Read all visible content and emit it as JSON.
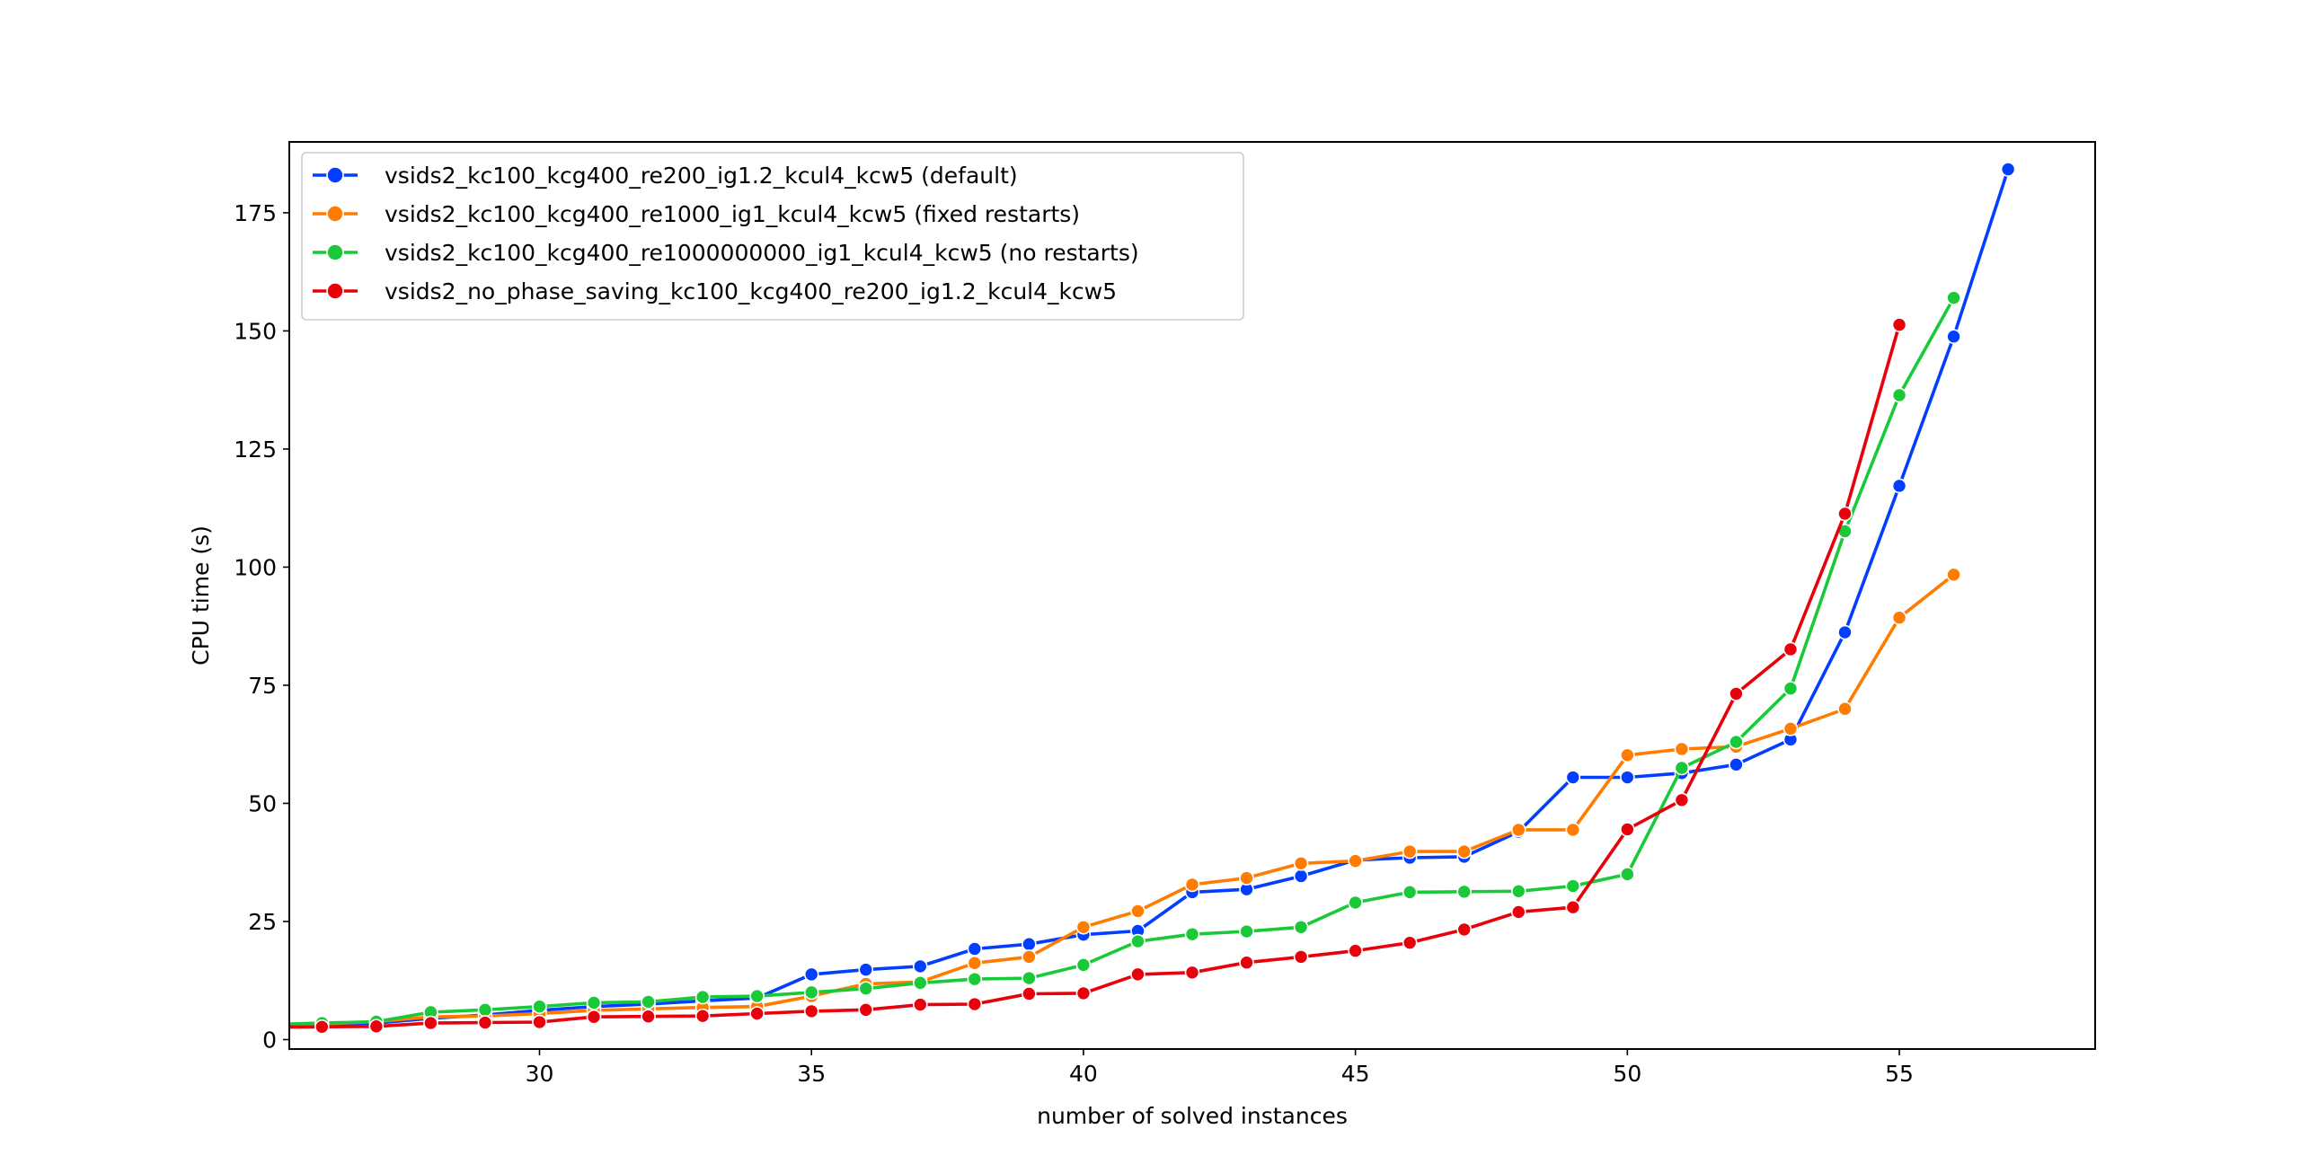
{
  "chart_data": {
    "type": "line",
    "title": "",
    "xlabel": "number of solved instances",
    "ylabel": "CPU time (s)",
    "xlim": [
      25.4,
      58.6
    ],
    "ylim": [
      -2,
      190
    ],
    "xticks": [
      30,
      35,
      40,
      45,
      50,
      55
    ],
    "yticks": [
      0,
      25,
      50,
      75,
      100,
      125,
      150,
      175
    ],
    "grid": false,
    "legend_position": "top-left",
    "series": [
      {
        "name": "vsids2_kc100_kcg400_re200_ig1.2_kcul4_kcw5 (default)",
        "color": "#023eff",
        "x": [
          25,
          26,
          27,
          28,
          29,
          30,
          31,
          32,
          33,
          34,
          35,
          36,
          37,
          38,
          39,
          40,
          41,
          42,
          43,
          44,
          45,
          46,
          47,
          48,
          49,
          50,
          51,
          52,
          53,
          54,
          55,
          56,
          57
        ],
        "y": [
          3.0,
          3.2,
          3.5,
          4.5,
          5.2,
          6.2,
          7.0,
          7.5,
          8.2,
          8.8,
          13.8,
          14.8,
          15.5,
          19.2,
          20.2,
          22.2,
          23.0,
          31.2,
          31.8,
          34.6,
          38.0,
          38.5,
          38.7,
          44.0,
          55.5,
          55.5,
          56.4,
          58.2,
          63.5,
          86.2,
          117.2,
          148.8,
          184.2
        ]
      },
      {
        "name": "vsids2_kc100_kcg400_re1000_ig1_kcul4_kcw5 (fixed restarts)",
        "color": "#ff7c00",
        "x": [
          25,
          26,
          27,
          28,
          29,
          30,
          31,
          32,
          33,
          34,
          35,
          36,
          37,
          38,
          39,
          40,
          41,
          42,
          43,
          44,
          45,
          46,
          47,
          48,
          49,
          50,
          51,
          52,
          53,
          54,
          55,
          56
        ],
        "y": [
          3.0,
          3.3,
          3.8,
          4.8,
          5.0,
          5.5,
          6.2,
          6.5,
          6.8,
          7.0,
          9.2,
          11.8,
          12.2,
          16.2,
          17.5,
          23.8,
          27.2,
          32.8,
          34.2,
          37.3,
          37.8,
          39.8,
          39.8,
          44.4,
          44.4,
          60.2,
          61.5,
          62.0,
          65.8,
          70.0,
          89.3,
          98.4
        ]
      },
      {
        "name": "vsids2_kc100_kcg400_re1000000000_ig1_kcul4_kcw5 (no restarts)",
        "color": "#1ac938",
        "x": [
          25,
          26,
          27,
          28,
          29,
          30,
          31,
          32,
          33,
          34,
          35,
          36,
          37,
          38,
          39,
          40,
          41,
          42,
          43,
          44,
          45,
          46,
          47,
          48,
          49,
          50,
          51,
          52,
          53,
          54,
          55,
          56
        ],
        "y": [
          3.2,
          3.5,
          3.8,
          5.8,
          6.3,
          7.0,
          7.8,
          8.0,
          9.0,
          9.2,
          10.0,
          10.8,
          12.0,
          12.8,
          13.0,
          15.8,
          20.8,
          22.3,
          22.9,
          23.8,
          29.0,
          31.2,
          31.3,
          31.4,
          32.5,
          35.0,
          57.5,
          63.0,
          74.3,
          107.6,
          136.4,
          157.0
        ]
      },
      {
        "name": "vsids2_no_phase_saving_kc100_kcg400_re200_ig1.2_kcul4_kcw5",
        "color": "#e8000b",
        "x": [
          25,
          26,
          27,
          28,
          29,
          30,
          31,
          32,
          33,
          34,
          35,
          36,
          37,
          38,
          39,
          40,
          41,
          42,
          43,
          44,
          45,
          46,
          47,
          48,
          49,
          50,
          51,
          52,
          53,
          54,
          55
        ],
        "y": [
          2.6,
          2.7,
          2.8,
          3.5,
          3.6,
          3.7,
          4.8,
          4.9,
          5.0,
          5.5,
          6.0,
          6.3,
          7.4,
          7.5,
          9.7,
          9.8,
          13.8,
          14.2,
          16.3,
          17.5,
          18.8,
          20.5,
          23.3,
          27.0,
          28.0,
          44.5,
          50.7,
          73.2,
          82.6,
          111.3,
          151.3
        ]
      }
    ]
  }
}
